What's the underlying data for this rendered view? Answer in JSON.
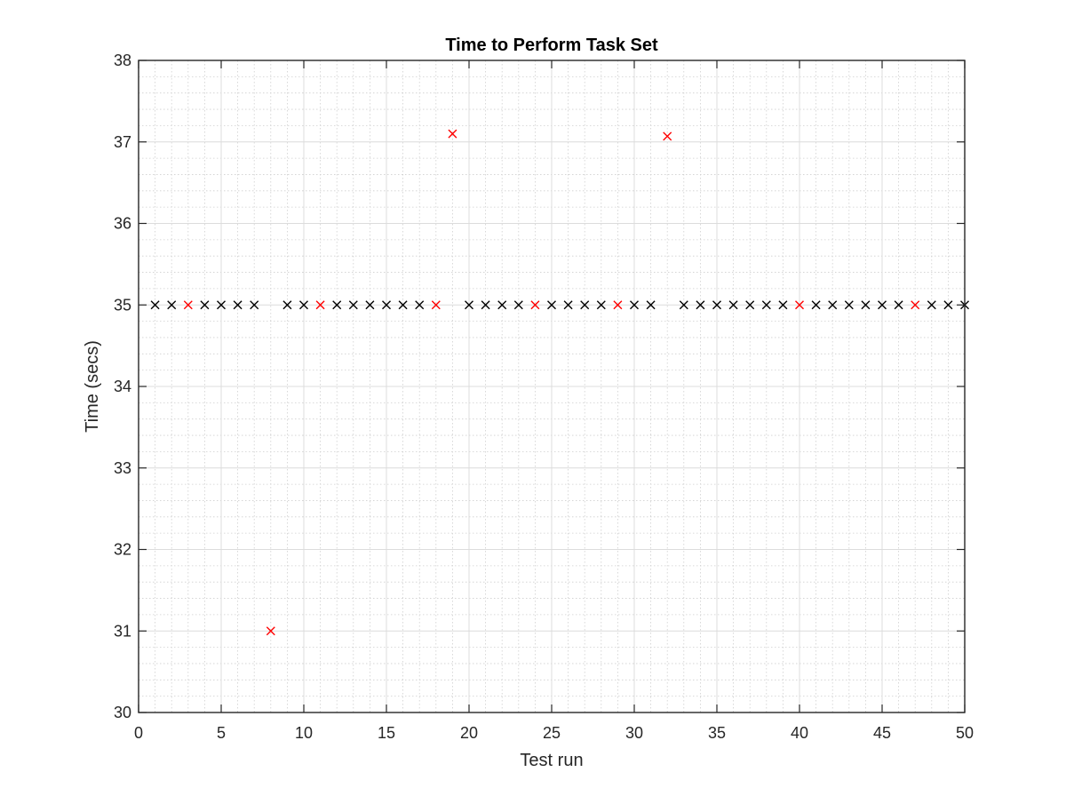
{
  "chart_data": {
    "type": "scatter",
    "title": "Time to Perform Task Set",
    "xlabel": "Test run",
    "ylabel": "Time (secs)",
    "xlim": [
      0,
      50
    ],
    "ylim": [
      30,
      38
    ],
    "xticks": [
      0,
      5,
      10,
      15,
      20,
      25,
      30,
      35,
      40,
      45,
      50
    ],
    "yticks": [
      30,
      31,
      32,
      33,
      34,
      35,
      36,
      37,
      38
    ],
    "grid": true,
    "minor_grid": true,
    "marker": "x",
    "series": [
      {
        "color": "#000000",
        "points": [
          [
            1,
            35
          ],
          [
            2,
            35
          ],
          [
            4,
            35
          ],
          [
            5,
            35
          ],
          [
            6,
            35
          ],
          [
            7,
            35
          ],
          [
            9,
            35
          ],
          [
            10,
            35
          ],
          [
            12,
            35
          ],
          [
            13,
            35
          ],
          [
            14,
            35
          ],
          [
            15,
            35
          ],
          [
            16,
            35
          ],
          [
            17,
            35
          ],
          [
            20,
            35
          ],
          [
            21,
            35
          ],
          [
            22,
            35
          ],
          [
            23,
            35
          ],
          [
            25,
            35
          ],
          [
            26,
            35
          ],
          [
            27,
            35
          ],
          [
            28,
            35
          ],
          [
            30,
            35
          ],
          [
            31,
            35
          ],
          [
            33,
            35
          ],
          [
            34,
            35
          ],
          [
            35,
            35
          ],
          [
            36,
            35
          ],
          [
            37,
            35
          ],
          [
            38,
            35
          ],
          [
            39,
            35
          ],
          [
            41,
            35
          ],
          [
            42,
            35
          ],
          [
            43,
            35
          ],
          [
            44,
            35
          ],
          [
            45,
            35
          ],
          [
            46,
            35
          ],
          [
            48,
            35
          ],
          [
            49,
            35
          ],
          [
            50,
            35
          ]
        ]
      },
      {
        "color": "#ff0000",
        "points": [
          [
            3,
            35
          ],
          [
            8,
            31
          ],
          [
            11,
            35
          ],
          [
            18,
            35
          ],
          [
            19,
            37.1
          ],
          [
            24,
            35
          ],
          [
            29,
            35
          ],
          [
            32,
            37.07
          ],
          [
            40,
            35
          ],
          [
            47,
            35
          ]
        ]
      }
    ]
  }
}
